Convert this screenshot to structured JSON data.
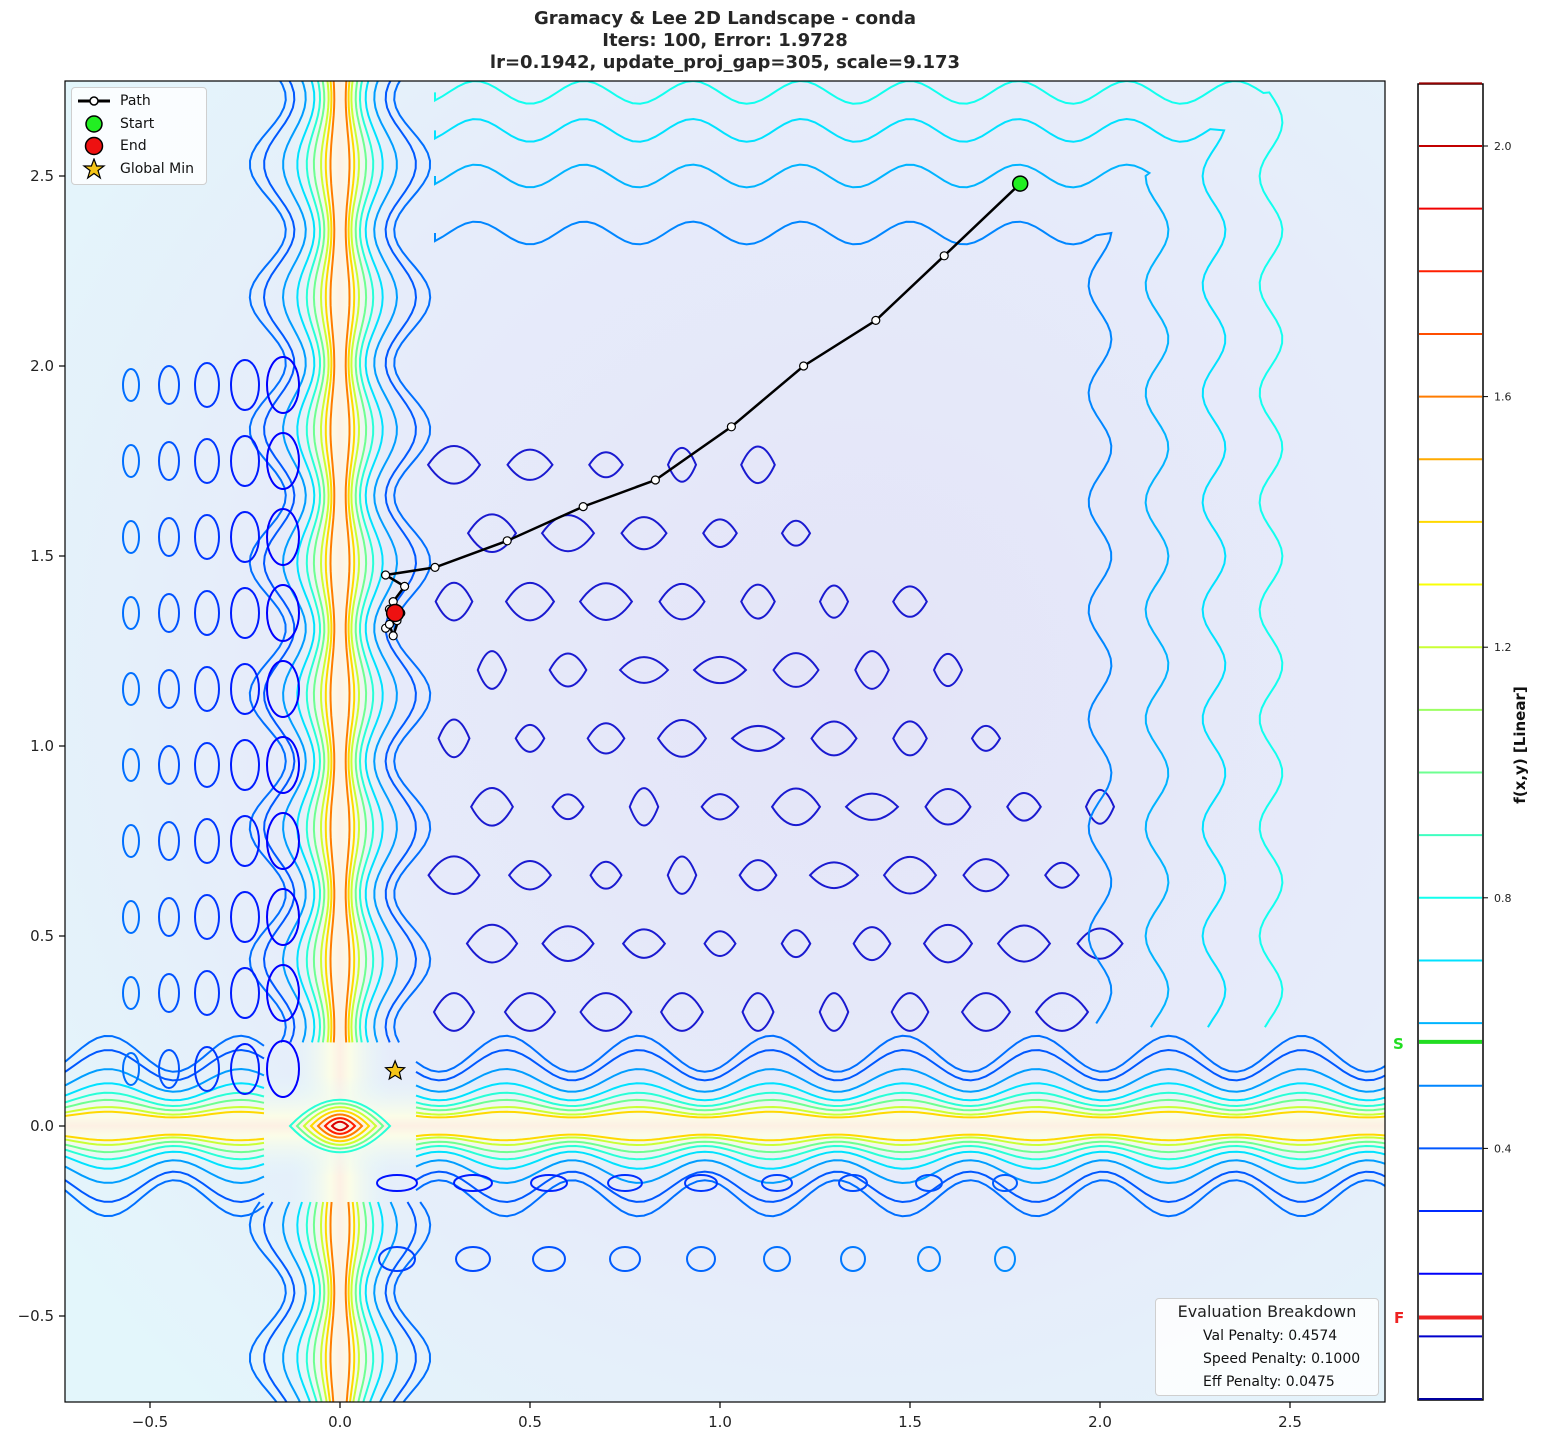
{
  "title": {
    "line1": "Gramacy & Lee 2D Landscape - conda",
    "line2": "Iters: 100, Error: 1.9728",
    "line3": "lr=0.1942, update_proj_gap=305, scale=9.173"
  },
  "legend": {
    "path": "Path",
    "start": "Start",
    "end": "End",
    "global_min": "Global Min"
  },
  "evaluation": {
    "heading": "Evaluation Breakdown",
    "val_penalty": "Val Penalty: 0.4574",
    "speed_penalty": "Speed Penalty: 0.1000",
    "eff_penalty": "Eff Penalty: 0.0475"
  },
  "colorbar": {
    "label": "f(x,y) [Linear]",
    "tick_labels": [
      "2.0",
      "1.6",
      "1.2",
      "0.8",
      "0.4"
    ],
    "start_marker": "S",
    "final_marker": "F",
    "start_color": "#22dd22",
    "final_color": "#ee2222"
  },
  "axes": {
    "x_ticks": [
      "−0.5",
      "0.0",
      "0.5",
      "1.0",
      "1.5",
      "2.0",
      "2.5"
    ],
    "y_ticks": [
      "−0.5",
      "0.0",
      "0.5",
      "1.0",
      "1.5",
      "2.0",
      "2.5"
    ]
  },
  "chart_data": {
    "type": "contour",
    "title": "Gramacy & Lee 2D Landscape - conda | Iters: 100, Error: 1.9728 | lr=0.1942, update_proj_gap=305, scale=9.173",
    "xlabel": "",
    "ylabel": "",
    "xlim": [
      -0.72,
      2.75
    ],
    "ylim": [
      -0.73,
      2.75
    ],
    "x_ticks": [
      -0.5,
      0.0,
      0.5,
      1.0,
      1.5,
      2.0,
      2.5
    ],
    "y_ticks": [
      -0.5,
      0.0,
      0.5,
      1.0,
      1.5,
      2.0,
      2.5
    ],
    "colorbar": {
      "label": "f(x,y) [Linear]",
      "levels": [
        0.0,
        0.1,
        0.2,
        0.3,
        0.4,
        0.5,
        0.6,
        0.7,
        0.8,
        0.9,
        1.0,
        1.1,
        1.2,
        1.3,
        1.4,
        1.5,
        1.6,
        1.7,
        1.8,
        1.9,
        2.0,
        2.1
      ],
      "tick_values": [
        0.4,
        0.8,
        1.2,
        1.6,
        2.0
      ],
      "start_value": 0.57,
      "final_value": 0.13
    },
    "path": {
      "x": [
        1.79,
        1.59,
        1.41,
        1.22,
        1.03,
        0.83,
        0.64,
        0.44,
        0.25,
        0.12,
        0.17,
        0.14,
        0.13,
        0.15,
        0.12,
        0.16,
        0.14,
        0.13,
        0.15
      ],
      "y": [
        2.48,
        2.29,
        2.12,
        2.0,
        1.84,
        1.7,
        1.63,
        1.54,
        1.47,
        1.45,
        1.42,
        1.38,
        1.36,
        1.33,
        1.31,
        1.35,
        1.29,
        1.32,
        1.34
      ]
    },
    "start": {
      "x": 1.79,
      "y": 2.48
    },
    "end": {
      "x": 0.145,
      "y": 1.35
    },
    "global_min": {
      "x": 0.145,
      "y": 0.145
    },
    "legend": [
      "Path",
      "Start",
      "End",
      "Global Min"
    ],
    "legend_position": "upper left",
    "annotation": {
      "title": "Evaluation Breakdown",
      "val_penalty": 0.4574,
      "speed_penalty": 0.1,
      "eff_penalty": 0.0475
    },
    "grid": false
  }
}
